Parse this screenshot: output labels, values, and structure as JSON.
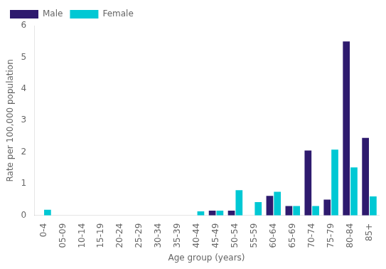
{
  "chart_data": {
    "type": "bar",
    "categories": [
      "0-4",
      "05-09",
      "10-14",
      "15-19",
      "20-24",
      "25-29",
      "30-34",
      "35-39",
      "40-44",
      "45-49",
      "50-54",
      "55-59",
      "60-64",
      "65-69",
      "70-74",
      "75-79",
      "80-84",
      "85+"
    ],
    "series": [
      {
        "name": "Male",
        "color": "#2e1a6e",
        "values": [
          0.0,
          0.0,
          0.0,
          0.0,
          0.0,
          0.0,
          0.0,
          0.0,
          0.0,
          0.15,
          0.15,
          0.0,
          0.62,
          0.3,
          2.05,
          0.5,
          5.5,
          2.45
        ]
      },
      {
        "name": "Female",
        "color": "#00c8d4",
        "values": [
          0.18,
          0.0,
          0.0,
          0.0,
          0.0,
          0.0,
          0.0,
          0.0,
          0.13,
          0.15,
          0.8,
          0.42,
          0.75,
          0.3,
          0.3,
          2.08,
          1.52,
          0.6
        ]
      }
    ],
    "xlabel": "Age group (years)",
    "ylabel": "Rate per 100,000 population",
    "ylim": [
      0,
      6
    ],
    "yticks": [
      0,
      1,
      2,
      3,
      4,
      5,
      6
    ],
    "grid": false,
    "legend": "upper left"
  }
}
